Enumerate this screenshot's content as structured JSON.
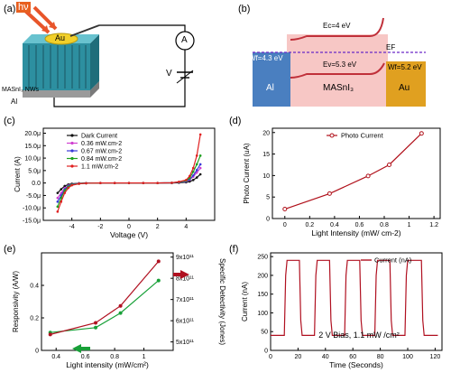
{
  "panels": {
    "a": {
      "label": "(a)",
      "light_label": "hν",
      "electrode_label": "Au",
      "ammeter_label": "A",
      "voltage_label": "V",
      "nanowire_label": "MASnI₃ NWs",
      "substrate_label": "Al"
    },
    "b": {
      "label": "(b)",
      "ec_label": "Ec=4 eV",
      "ev_label": "Ev=5.3 eV",
      "ef_label": "EF",
      "al_wf_label": "Wf=4.3 eV",
      "au_wf_label": "Wf=5.2 eV",
      "al_label": "Al",
      "mid_label": "MASnI₃",
      "au_label": "Au",
      "colors": {
        "al": "#4a7fc0",
        "au": "#e0a020",
        "mid": "#f7c7c5",
        "band": "#c0303a",
        "ef": "#6a28c8"
      }
    },
    "c": {
      "label": "(c)"
    },
    "d": {
      "label": "(d)"
    },
    "e": {
      "label": "(e)"
    },
    "f": {
      "label": "(f)"
    }
  },
  "chart_data": [
    {
      "panel": "c",
      "type": "line",
      "xlabel": "Voltage (V)",
      "ylabel": "Current (A)",
      "xlim": [
        -6,
        6
      ],
      "ylim": [
        -15,
        22
      ],
      "xticks": [
        -4,
        -2,
        0,
        2,
        4
      ],
      "yticks": [
        -15,
        -10,
        -5,
        0,
        5,
        10,
        15,
        20
      ],
      "ytick_labels": [
        "-15.0μ",
        "-10.0μ",
        "-5.0μ",
        "0.0",
        "5.0μ",
        "10.0μ",
        "15.0μ",
        "20.0μ"
      ],
      "legend_position": "top-left",
      "x": [
        -5,
        -4.75,
        -4.5,
        -4.25,
        -4,
        -3.5,
        -3,
        -2,
        -1,
        0,
        1,
        2,
        3,
        3.5,
        4,
        4.25,
        4.5,
        4.75,
        5
      ],
      "series": [
        {
          "name": "Dark Current",
          "color": "#111111",
          "values": [
            -4,
            -2.5,
            -1.2,
            -0.6,
            -0.3,
            -0.1,
            0,
            0,
            0,
            0,
            0,
            0,
            0,
            0.1,
            0.3,
            0.6,
            1.2,
            2.2,
            3.5
          ]
        },
        {
          "name": "0.36 mW.cm-2",
          "color": "#d040d0",
          "values": [
            -6,
            -4,
            -2,
            -1,
            -0.5,
            -0.2,
            -0.1,
            0,
            0,
            0,
            0,
            0,
            0.1,
            0.3,
            0.6,
            1.3,
            2.5,
            4.2,
            6
          ]
        },
        {
          "name": "0.67 mW.cm-2",
          "color": "#3a3ad8",
          "values": [
            -7.5,
            -5,
            -2.5,
            -1.2,
            -0.6,
            -0.2,
            -0.1,
            0,
            0,
            0,
            0,
            0,
            0.1,
            0.3,
            0.7,
            1.5,
            3,
            5.2,
            7.5
          ]
        },
        {
          "name": "0.84 mW.cm-2",
          "color": "#1fa01f",
          "values": [
            -9.5,
            -6,
            -3,
            -1.5,
            -0.7,
            -0.3,
            -0.1,
            0,
            0,
            0,
            0,
            0,
            0.1,
            0.4,
            0.9,
            2,
            4.5,
            7.5,
            11
          ]
        },
        {
          "name": "1.1 mW.cm-2",
          "color": "#e02020",
          "values": [
            -11.5,
            -7.5,
            -4,
            -2,
            -0.9,
            -0.3,
            -0.1,
            0,
            0,
            0,
            0,
            0,
            0.1,
            0.5,
            1.2,
            2.8,
            6,
            11,
            19.5
          ]
        }
      ]
    },
    {
      "panel": "d",
      "type": "line",
      "xlabel": "Light Intensity (mW/ cm-2)",
      "ylabel": "Photo Current (uA)",
      "xlim": [
        -0.1,
        1.25
      ],
      "ylim": [
        0,
        21
      ],
      "xticks": [
        0.0,
        0.2,
        0.4,
        0.6,
        0.8,
        1.0,
        1.2
      ],
      "yticks": [
        0,
        5,
        10,
        15,
        20
      ],
      "legend_position": "top-left",
      "x": [
        0,
        0.36,
        0.67,
        0.84,
        1.1
      ],
      "series": [
        {
          "name": "Photo Current",
          "color": "#b0101a",
          "values": [
            2.2,
            5.8,
            9.9,
            12.5,
            19.8
          ]
        }
      ]
    },
    {
      "panel": "e",
      "type": "line",
      "xlabel": "Light intensity (mW/cm²)",
      "ylabel": "Responsivity (A/W)",
      "ylabel_right": "Specific Detectivity (Jones)",
      "xlim": [
        0.3,
        1.2
      ],
      "ylim": [
        0.0,
        0.6
      ],
      "xticks": [
        0.4,
        0.6,
        0.8,
        1.0
      ],
      "yticks": [
        0.0,
        0.2,
        0.4
      ],
      "y2lim": [
        4.6,
        9.2
      ],
      "y2ticks": [
        5,
        6,
        7,
        8,
        9
      ],
      "y2tick_labels": [
        "5x10¹¹",
        "6x10¹¹",
        "7x10¹¹",
        "8x10¹¹",
        "9x10¹¹"
      ],
      "x": [
        0.36,
        0.67,
        0.84,
        1.1
      ],
      "series": [
        {
          "name": "Responsivity",
          "axis": "left",
          "color": "#18a038",
          "values": [
            0.11,
            0.14,
            0.23,
            0.43
          ]
        },
        {
          "name": "Specific Detectivity",
          "axis": "right",
          "color": "#b01020",
          "values": [
            5.35,
            5.9,
            6.7,
            8.8
          ]
        }
      ]
    },
    {
      "panel": "f",
      "type": "line",
      "xlabel": "Time (Seconds)",
      "ylabel": "Current (nA)",
      "xlim": [
        0,
        125
      ],
      "ylim": [
        0,
        260
      ],
      "xticks": [
        0,
        20,
        40,
        60,
        80,
        100,
        120
      ],
      "yticks": [
        0,
        50,
        100,
        150,
        200,
        250
      ],
      "annotation": "2 V Bias, 1.1 mW /cm²",
      "legend_position": "top-right",
      "x": [
        0,
        10,
        11,
        12,
        21,
        22,
        23,
        32,
        33,
        34,
        43,
        44,
        45,
        54,
        55,
        56,
        65,
        66,
        67,
        76,
        77,
        78,
        87,
        88,
        89,
        98,
        99,
        100,
        110,
        111,
        112,
        122
      ],
      "series": [
        {
          "name": "Current (nA)",
          "color": "#b01020",
          "values": [
            40,
            40,
            200,
            240,
            240,
            80,
            40,
            40,
            200,
            240,
            240,
            80,
            40,
            40,
            200,
            240,
            240,
            80,
            40,
            40,
            200,
            240,
            240,
            80,
            40,
            40,
            200,
            240,
            240,
            80,
            40,
            40
          ]
        }
      ]
    }
  ]
}
